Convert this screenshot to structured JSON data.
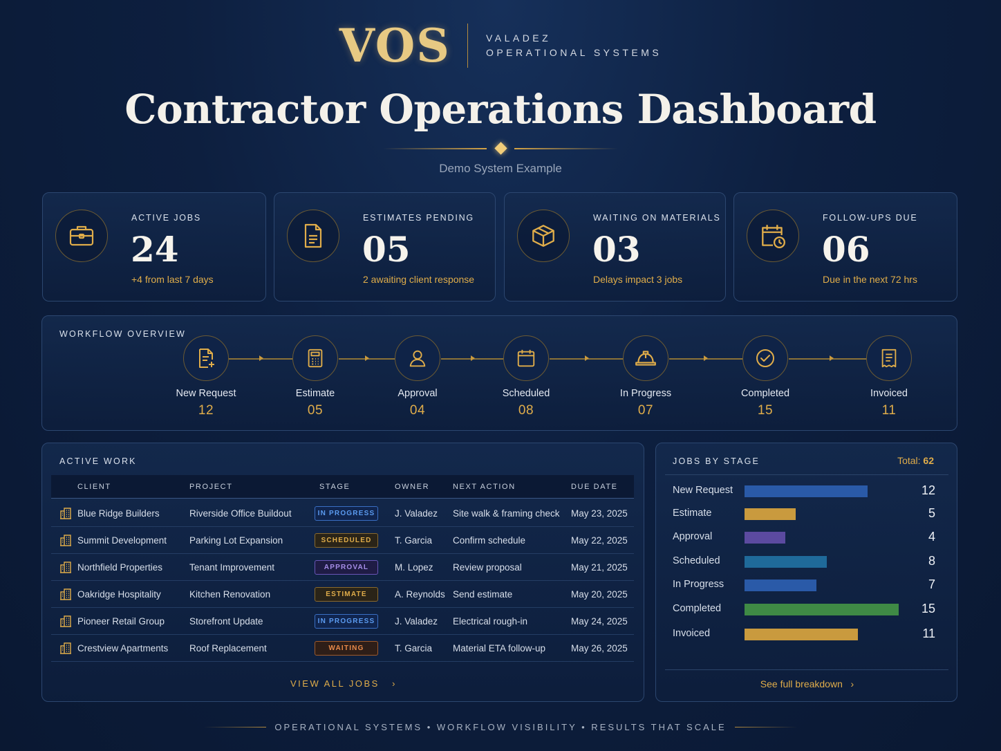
{
  "brand": {
    "logo": "VOS",
    "line1": "VALADEZ",
    "line2": "OPERATIONAL SYSTEMS"
  },
  "header": {
    "title": "Contractor Operations Dashboard",
    "subtitle": "Demo System Example"
  },
  "stats": [
    {
      "label": "ACTIVE JOBS",
      "value": "24",
      "note": "+4 from last 7 days",
      "icon": "briefcase-icon"
    },
    {
      "label": "ESTIMATES PENDING",
      "value": "05",
      "note": "2 awaiting client response",
      "icon": "document-icon"
    },
    {
      "label": "WAITING ON MATERIALS",
      "value": "03",
      "note": "Delays impact 3 jobs",
      "icon": "package-icon"
    },
    {
      "label": "FOLLOW-UPS DUE",
      "value": "06",
      "note": "Due in the next 72 hrs",
      "icon": "calendar-clock-icon"
    }
  ],
  "workflow": {
    "label": "WORKFLOW OVERVIEW",
    "steps": [
      {
        "name": "New Request",
        "count": "12",
        "icon": "new-document-icon"
      },
      {
        "name": "Estimate",
        "count": "05",
        "icon": "calculator-icon"
      },
      {
        "name": "Approval",
        "count": "04",
        "icon": "person-icon"
      },
      {
        "name": "Scheduled",
        "count": "08",
        "icon": "calendar-icon"
      },
      {
        "name": "In Progress",
        "count": "07",
        "icon": "hard-hat-icon"
      },
      {
        "name": "Completed",
        "count": "15",
        "icon": "check-circle-icon"
      },
      {
        "name": "Invoiced",
        "count": "11",
        "icon": "receipt-icon"
      }
    ]
  },
  "active_work": {
    "label": "ACTIVE WORK",
    "columns": [
      "CLIENT",
      "PROJECT",
      "STAGE",
      "OWNER",
      "NEXT ACTION",
      "DUE DATE"
    ],
    "rows": [
      {
        "client": "Blue Ridge Builders",
        "project": "Riverside Office Buildout",
        "stage": "IN PROGRESS",
        "owner": "J. Valadez",
        "next_action": "Site walk & framing check",
        "due": "May 23, 2025"
      },
      {
        "client": "Summit Development",
        "project": "Parking Lot Expansion",
        "stage": "SCHEDULED",
        "owner": "T. Garcia",
        "next_action": "Confirm schedule",
        "due": "May 22, 2025"
      },
      {
        "client": "Northfield Properties",
        "project": "Tenant Improvement",
        "stage": "APPROVAL",
        "owner": "M. Lopez",
        "next_action": "Review proposal",
        "due": "May 21, 2025"
      },
      {
        "client": "Oakridge Hospitality",
        "project": "Kitchen Renovation",
        "stage": "ESTIMATE",
        "owner": "A. Reynolds",
        "next_action": "Send estimate",
        "due": "May 20, 2025"
      },
      {
        "client": "Pioneer Retail Group",
        "project": "Storefront Update",
        "stage": "IN PROGRESS",
        "owner": "J. Valadez",
        "next_action": "Electrical rough-in",
        "due": "May 24, 2025"
      },
      {
        "client": "Crestview Apartments",
        "project": "Roof Replacement",
        "stage": "WAITING",
        "owner": "T. Garcia",
        "next_action": "Material ETA follow-up",
        "due": "May 26, 2025"
      }
    ],
    "footer_link": "VIEW ALL JOBS"
  },
  "jobs_by_stage": {
    "label": "JOBS BY STAGE",
    "total_label": "Total:",
    "total_value": "62",
    "footer_link": "See full breakdown"
  },
  "chart_data": {
    "type": "bar",
    "orientation": "horizontal",
    "categories": [
      "New Request",
      "Estimate",
      "Approval",
      "Scheduled",
      "In Progress",
      "Completed",
      "Invoiced"
    ],
    "values": [
      12,
      5,
      4,
      8,
      7,
      15,
      11
    ],
    "colors": [
      "#2a5aa8",
      "#c99a3e",
      "#5b4aa0",
      "#1f6a9a",
      "#2a5aa8",
      "#3f8a45",
      "#c99a3e"
    ],
    "xlim": [
      0,
      15
    ]
  },
  "badge_colors": {
    "IN PROGRESS": {
      "fg": "#5b9bf0",
      "border": "#3a6fc4",
      "bg": "#10254f"
    },
    "SCHEDULED": {
      "fg": "#e0ad4a",
      "border": "#8b6a2c",
      "bg": "#2a2418"
    },
    "APPROVAL": {
      "fg": "#a68ee8",
      "border": "#6a56b8",
      "bg": "#1f1c45"
    },
    "ESTIMATE": {
      "fg": "#e0ad4a",
      "border": "#8b6a2c",
      "bg": "#2a2418"
    },
    "WAITING": {
      "fg": "#e88a4a",
      "border": "#a05a2a",
      "bg": "#2e1e18"
    }
  },
  "tagline": "OPERATIONAL SYSTEMS • WORKFLOW VISIBILITY • RESULTS THAT SCALE"
}
